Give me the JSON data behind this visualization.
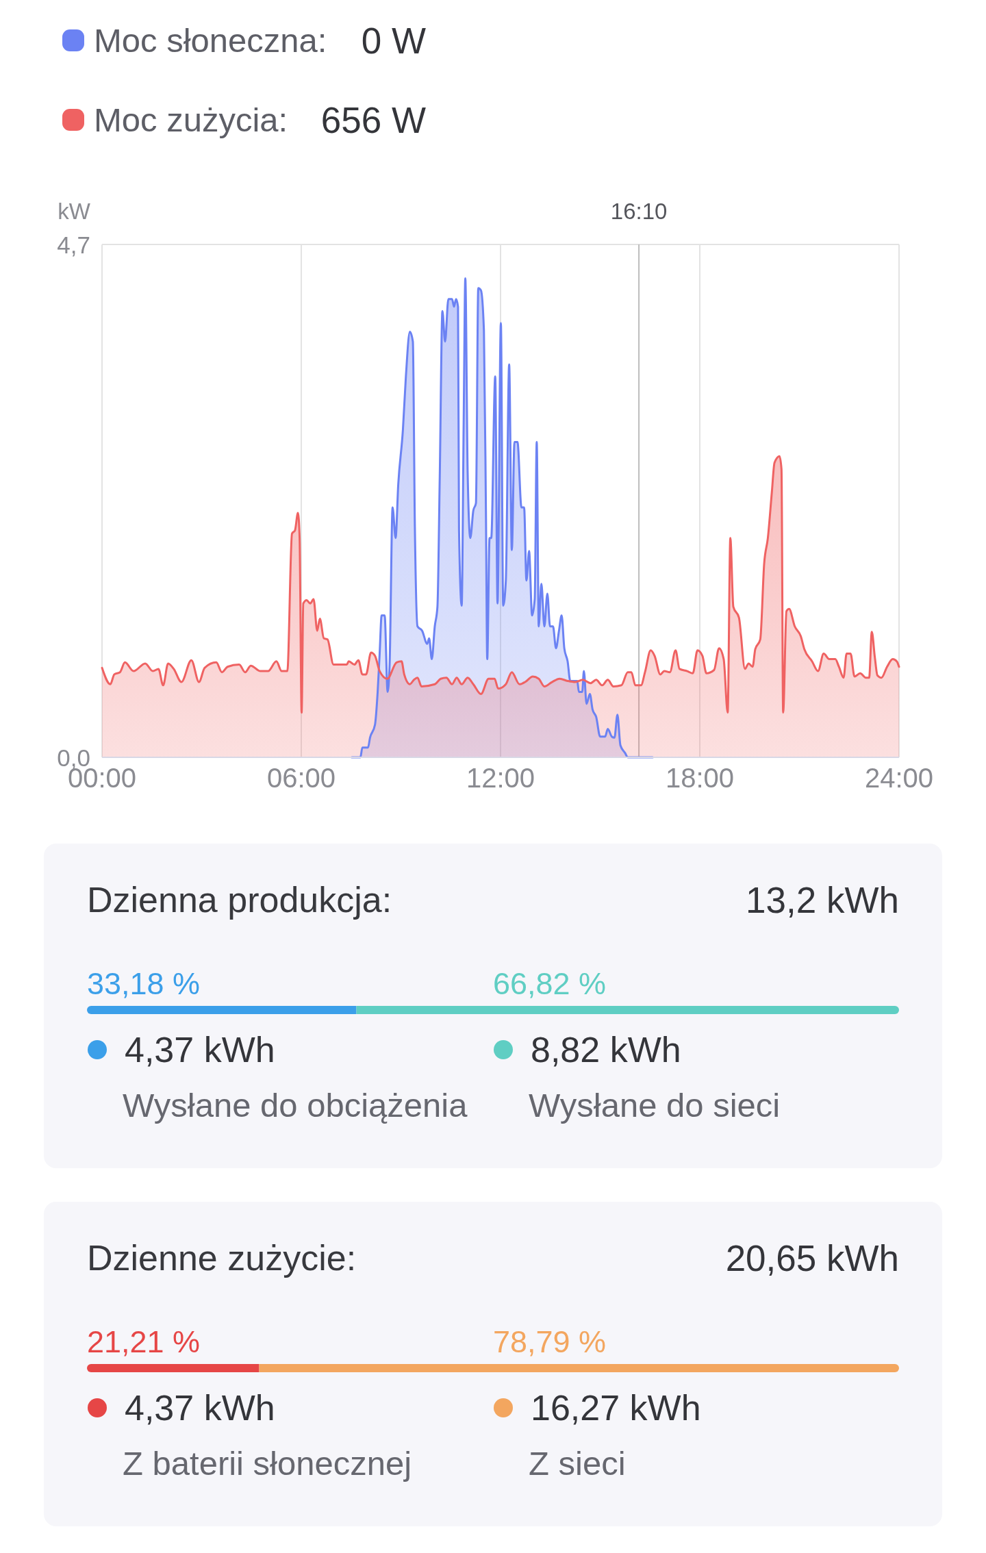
{
  "chart_data": [
    {
      "type": "area",
      "ylabel": "kW",
      "xlim": [
        0,
        24
      ],
      "xticks": [
        {
          "value": 0,
          "label": "00:00"
        },
        {
          "value": 6,
          "label": "06:00"
        },
        {
          "value": 12,
          "label": "12:00"
        },
        {
          "value": 18,
          "label": "18:00"
        },
        {
          "value": 24,
          "label": "24:00"
        }
      ],
      "ylim": [
        0,
        4.7
      ],
      "yticks": [
        {
          "value": 0,
          "label": "0,0"
        },
        {
          "value": 4.7,
          "label": "4,7"
        }
      ],
      "grid": true,
      "legend": "top left",
      "annotations": [
        "0 W",
        "656 W"
      ],
      "ref_lines": [
        {
          "axis": "x",
          "value": 16.1667,
          "label": "16:10",
          "color": "#bdbdbd"
        }
      ],
      "series": [
        {
          "name": "Moc słoneczna:",
          "color": "#6b82f3",
          "x": [
            7.52,
            7.78,
            7.84,
            8.01,
            8.07,
            8.22,
            8.3,
            8.36,
            8.42,
            8.51,
            8.6,
            8.66,
            8.75,
            8.84,
            8.92,
            9.06,
            9.15,
            9.27,
            9.36,
            9.42,
            9.5,
            9.64,
            9.79,
            9.85,
            9.93,
            10.02,
            10.1,
            10.17,
            10.25,
            10.33,
            10.43,
            10.54,
            10.6,
            10.66,
            10.72,
            10.75,
            10.83,
            10.89,
            10.94,
            11.01,
            11.09,
            11.18,
            11.26,
            11.33,
            11.41,
            11.5,
            11.56,
            11.6,
            11.67,
            11.72,
            11.84,
            11.91,
            12.01,
            12.08,
            12.16,
            12.26,
            12.34,
            12.42,
            12.51,
            12.63,
            12.71,
            12.78,
            12.86,
            12.95,
            13.03,
            13.09,
            13.15,
            13.23,
            13.32,
            13.41,
            13.49,
            13.58,
            13.67,
            13.76,
            13.84,
            13.92,
            14.02,
            14.1,
            14.31,
            14.36,
            14.46,
            14.51,
            14.59,
            14.69,
            14.77,
            14.88,
            15.0,
            15.15,
            15.23,
            15.35,
            15.43,
            15.52,
            15.61,
            15.75,
            15.83,
            16.58
          ],
          "values": [
            0,
            0,
            0.09,
            0.09,
            0.18,
            0.3,
            0.6,
            0.95,
            1.3,
            1.3,
            0.6,
            0.85,
            2.29,
            2.01,
            2.5,
            3.0,
            3.49,
            3.9,
            3.81,
            2.12,
            1.2,
            1.16,
            1.04,
            1.09,
            0.9,
            1.2,
            1.38,
            2.57,
            4.09,
            3.81,
            4.2,
            4.2,
            4.13,
            4.2,
            4.13,
            2.08,
            1.39,
            3.07,
            4.39,
            2.61,
            2.01,
            2.26,
            2.33,
            4.3,
            4.28,
            3.91,
            2.26,
            0.9,
            2.01,
            2.01,
            3.49,
            1.41,
            3.98,
            1.39,
            1.62,
            3.6,
            1.9,
            2.89,
            2.89,
            2.29,
            2.29,
            1.62,
            1.89,
            1.3,
            1.45,
            2.89,
            1.2,
            1.59,
            1.2,
            1.5,
            1.2,
            1.2,
            1.0,
            1.16,
            1.3,
            1.0,
            0.88,
            0.7,
            0.7,
            0.6,
            0.6,
            0.79,
            0.49,
            0.58,
            0.44,
            0.37,
            0.19,
            0.19,
            0.26,
            0.19,
            0.18,
            0.39,
            0.11,
            0.04,
            0,
            0
          ]
        },
        {
          "name": "Moc zużycia:",
          "color": "#ef6262",
          "x": [
            0,
            0.25,
            0.37,
            0.54,
            0.69,
            0.95,
            1.3,
            1.53,
            1.7,
            1.84,
            1.99,
            2.16,
            2.39,
            2.69,
            2.92,
            3.09,
            3.44,
            3.61,
            3.78,
            4.13,
            4.31,
            4.48,
            4.77,
            5.0,
            5.25,
            5.41,
            5.58,
            5.72,
            5.81,
            5.9,
            5.95,
            6.01,
            6.06,
            6.16,
            6.27,
            6.37,
            6.48,
            6.56,
            6.68,
            6.79,
            6.97,
            7.37,
            7.43,
            7.6,
            7.72,
            7.84,
            7.95,
            8.1,
            8.22,
            8.36,
            8.59,
            8.87,
            9.02,
            9.1,
            9.27,
            9.39,
            9.5,
            9.62,
            10.02,
            10.2,
            10.37,
            10.54,
            10.68,
            10.83,
            11.01,
            11.18,
            11.41,
            11.64,
            11.82,
            11.93,
            12.16,
            12.34,
            12.57,
            12.74,
            12.97,
            13.15,
            13.32,
            13.55,
            13.78,
            14.02,
            14.25,
            14.48,
            14.71,
            14.88,
            15.06,
            15.23,
            15.4,
            15.64,
            15.83,
            15.94,
            16.06,
            16.23,
            16.35,
            16.52,
            16.64,
            16.81,
            16.93,
            17.1,
            17.27,
            17.39,
            17.62,
            17.79,
            17.93,
            18.08,
            18.2,
            18.43,
            18.58,
            18.72,
            18.84,
            18.92,
            19.01,
            19.18,
            19.36,
            19.47,
            19.59,
            19.67,
            19.82,
            19.94,
            20.05,
            20.17,
            20.25,
            20.4,
            20.46,
            20.51,
            20.61,
            20.69,
            20.86,
            21.04,
            21.15,
            21.38,
            21.56,
            21.73,
            21.9,
            22.08,
            22.19,
            22.33,
            22.42,
            22.54,
            22.66,
            22.83,
            23.0,
            23.1,
            23.18,
            23.27,
            23.35,
            23.47,
            23.64,
            23.81,
            23.93,
            24
          ],
          "values": [
            0.82,
            0.67,
            0.76,
            0.78,
            0.87,
            0.79,
            0.86,
            0.79,
            0.81,
            0.66,
            0.86,
            0.81,
            0.69,
            0.89,
            0.69,
            0.82,
            0.87,
            0.78,
            0.83,
            0.85,
            0.78,
            0.84,
            0.79,
            0.79,
            0.88,
            0.79,
            0.79,
            2.05,
            2.08,
            2.24,
            2.01,
            0.41,
            1.41,
            1.44,
            1.41,
            1.45,
            1.16,
            1.27,
            1.09,
            1.08,
            0.85,
            0.85,
            0.88,
            0.85,
            0.89,
            0.76,
            0.76,
            0.96,
            0.93,
            0.79,
            0.72,
            0.87,
            0.88,
            0.76,
            0.67,
            0.71,
            0.73,
            0.65,
            0.67,
            0.72,
            0.73,
            0.67,
            0.73,
            0.67,
            0.73,
            0.67,
            0.58,
            0.72,
            0.72,
            0.63,
            0.67,
            0.78,
            0.67,
            0.69,
            0.74,
            0.72,
            0.65,
            0.69,
            0.72,
            0.7,
            0.69,
            0.71,
            0.68,
            0.71,
            0.66,
            0.71,
            0.65,
            0.66,
            0.78,
            0.78,
            0.66,
            0.66,
            0.78,
            0.98,
            0.93,
            0.76,
            0.79,
            0.78,
            0.98,
            0.81,
            0.79,
            0.77,
            0.98,
            0.93,
            0.77,
            0.8,
            1.0,
            0.9,
            0.41,
            2.01,
            1.38,
            1.28,
            0.81,
            0.86,
            0.83,
            0.99,
            1.08,
            1.78,
            2.01,
            2.43,
            2.7,
            2.76,
            2.64,
            0.41,
            1.34,
            1.36,
            1.2,
            1.11,
            0.99,
            0.88,
            0.79,
            0.95,
            0.9,
            0.9,
            0.83,
            0.73,
            0.95,
            0.95,
            0.74,
            0.77,
            0.73,
            0.73,
            1.15,
            0.92,
            0.75,
            0.73,
            0.83,
            0.9,
            0.88,
            0.83
          ]
        }
      ]
    },
    {
      "type": "bar",
      "orientation": "horizontal",
      "stacked": true,
      "title": "Dzienna produkcja:",
      "categories": [
        null
      ],
      "legend": "bottom",
      "annotations": [
        "13,2 kWh",
        "4,37 kWh",
        "8,82 kWh"
      ],
      "series": [
        {
          "name": "Wysłane do obciążenia",
          "color": "#3b9fe9",
          "values": [
            33.18
          ],
          "value_labels": [
            "33,18 %"
          ]
        },
        {
          "name": "Wysłane do sieci",
          "color": "#5fcec3",
          "values": [
            66.82
          ],
          "value_labels": [
            "66,82 %"
          ]
        }
      ]
    },
    {
      "type": "bar",
      "orientation": "horizontal",
      "stacked": true,
      "title": "Dzienne zużycie:",
      "categories": [
        null
      ],
      "legend": "bottom",
      "annotations": [
        "20,65 kWh",
        "4,37 kWh",
        "16,27 kWh"
      ],
      "series": [
        {
          "name": "Z baterii słonecznej",
          "color": "#e64646",
          "values": [
            21.21
          ],
          "value_labels": [
            "21,21 %"
          ]
        },
        {
          "name": "Z sieci",
          "color": "#f3a65f",
          "values": [
            78.79
          ],
          "value_labels": [
            "78,79 %"
          ]
        }
      ]
    }
  ]
}
